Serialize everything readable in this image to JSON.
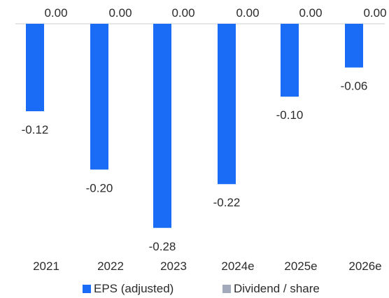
{
  "chart_data": {
    "type": "bar",
    "categories": [
      "2021",
      "2022",
      "2023",
      "2024e",
      "2025e",
      "2026e"
    ],
    "series": [
      {
        "name": "EPS (adjusted)",
        "values": [
          -0.12,
          -0.2,
          -0.28,
          -0.22,
          -0.1,
          -0.06
        ],
        "labels": [
          "-0.12",
          "-0.20",
          "-0.28",
          "-0.22",
          "-0.10",
          "-0.06"
        ],
        "color": "#1a6bf5"
      },
      {
        "name": "Dividend / share",
        "values": [
          0,
          0,
          0,
          0,
          0,
          0
        ],
        "labels": [
          "0.00",
          "0.00",
          "0.00",
          "0.00",
          "0.00",
          "0.00"
        ],
        "color": "#a3aabb"
      }
    ],
    "grid": false,
    "legend_position": "bottom"
  }
}
